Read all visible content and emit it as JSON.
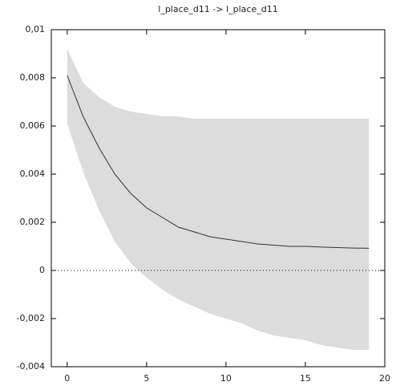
{
  "chart_data": {
    "type": "band-line",
    "title": "l_place_d11 -> l_place_d11",
    "x": [
      0,
      1,
      2,
      3,
      4,
      5,
      6,
      7,
      8,
      9,
      10,
      11,
      12,
      13,
      14,
      15,
      16,
      17,
      18,
      19
    ],
    "line": {
      "color": "#333333",
      "values": [
        0.0081,
        0.0064,
        0.0051,
        0.004,
        0.0032,
        0.0026,
        0.0022,
        0.0018,
        0.0016,
        0.0014,
        0.0013,
        0.0012,
        0.0011,
        0.00105,
        0.001,
        0.001,
        0.00097,
        0.00095,
        0.00093,
        0.00092
      ]
    },
    "band": {
      "color": "#dcdcdc",
      "upper": [
        0.0092,
        0.0078,
        0.0072,
        0.0068,
        0.0066,
        0.0065,
        0.0064,
        0.0064,
        0.0063,
        0.0063,
        0.0063,
        0.0063,
        0.0063,
        0.0063,
        0.0063,
        0.0063,
        0.0063,
        0.0063,
        0.0063,
        0.0063
      ],
      "lower": [
        0.0061,
        0.0041,
        0.0025,
        0.0012,
        0.0003,
        -0.0003,
        -0.0008,
        -0.0012,
        -0.0015,
        -0.0018,
        -0.002,
        -0.0022,
        -0.0025,
        -0.0027,
        -0.0028,
        -0.0029,
        -0.0031,
        -0.0032,
        -0.0033,
        -0.0033
      ]
    },
    "zero_line": true,
    "xlim": [
      -1,
      20
    ],
    "xticks": [
      0,
      5,
      10,
      15,
      20
    ],
    "ylim": [
      -0.004,
      0.01
    ],
    "yticks": [
      {
        "value": -0.004,
        "label": "-0,004"
      },
      {
        "value": -0.002,
        "label": "-0,002"
      },
      0,
      {
        "value": 0.002,
        "label": "0,002"
      },
      {
        "value": 0.004,
        "label": "0,004"
      },
      {
        "value": 0.006,
        "label": "0,006"
      },
      {
        "value": 0.008,
        "label": "0,008"
      },
      {
        "value": 0.01,
        "label": "0,01"
      }
    ]
  }
}
